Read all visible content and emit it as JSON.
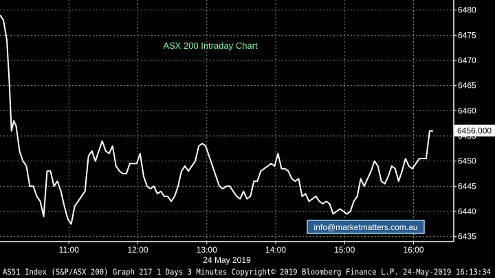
{
  "chart_data": {
    "type": "line",
    "title": "ASX 200 Intraday Chart",
    "xlabel": "24 May 2019",
    "ylabel": "",
    "ylim": [
      6434,
      6482
    ],
    "xlim": [
      "10:00",
      "16:35"
    ],
    "grid": true,
    "x_ticks": [
      "11:00",
      "12:00",
      "13:00",
      "14:00",
      "15:00",
      "16:00"
    ],
    "y_ticks": [
      6435,
      6440,
      6445,
      6450,
      6455,
      6460,
      6465,
      6470,
      6475,
      6480
    ],
    "last_value_label": "6456.000",
    "series": [
      {
        "values": [
          [
            "10:00",
            6479
          ],
          [
            "10:03",
            6478
          ],
          [
            "10:06",
            6474
          ],
          [
            "10:08",
            6466
          ],
          [
            "10:10",
            6456
          ],
          [
            "10:12",
            6458
          ],
          [
            "10:14",
            6457
          ],
          [
            "10:17",
            6452
          ],
          [
            "10:20",
            6450
          ],
          [
            "10:23",
            6449
          ],
          [
            "10:26",
            6445
          ],
          [
            "10:29",
            6445
          ],
          [
            "10:32",
            6443
          ],
          [
            "10:35",
            6442
          ],
          [
            "10:38",
            6439
          ],
          [
            "10:41",
            6448
          ],
          [
            "10:44",
            6448
          ],
          [
            "10:47",
            6445
          ],
          [
            "10:50",
            6446
          ],
          [
            "10:53",
            6444
          ],
          [
            "10:56",
            6441
          ],
          [
            "10:59",
            6438.5
          ],
          [
            "11:02",
            6437.5
          ],
          [
            "11:05",
            6441
          ],
          [
            "11:08",
            6442
          ],
          [
            "11:11",
            6443
          ],
          [
            "11:14",
            6444
          ],
          [
            "11:17",
            6451
          ],
          [
            "11:20",
            6452
          ],
          [
            "11:23",
            6450
          ],
          [
            "11:26",
            6452
          ],
          [
            "11:29",
            6454
          ],
          [
            "11:32",
            6452
          ],
          [
            "11:35",
            6451.5
          ],
          [
            "11:38",
            6453
          ],
          [
            "11:41",
            6449
          ],
          [
            "11:44",
            6448
          ],
          [
            "11:47",
            6447.5
          ],
          [
            "11:50",
            6447.5
          ],
          [
            "11:53",
            6449.5
          ],
          [
            "11:56",
            6449.5
          ],
          [
            "11:59",
            6449.5
          ],
          [
            "12:02",
            6451.5
          ],
          [
            "12:05",
            6447
          ],
          [
            "12:08",
            6445
          ],
          [
            "12:11",
            6444.5
          ],
          [
            "12:14",
            6445
          ],
          [
            "12:17",
            6443.5
          ],
          [
            "12:20",
            6444
          ],
          [
            "12:23",
            6443
          ],
          [
            "12:26",
            6443
          ],
          [
            "12:29",
            6442
          ],
          [
            "12:32",
            6443
          ],
          [
            "12:35",
            6445
          ],
          [
            "12:38",
            6448
          ],
          [
            "12:41",
            6449
          ],
          [
            "12:44",
            6448
          ],
          [
            "12:47",
            6449
          ],
          [
            "12:50",
            6450
          ],
          [
            "12:53",
            6453
          ],
          [
            "12:56",
            6453.5
          ],
          [
            "12:59",
            6453
          ],
          [
            "13:02",
            6451
          ],
          [
            "13:05",
            6449
          ],
          [
            "13:08",
            6447
          ],
          [
            "13:11",
            6445
          ],
          [
            "13:14",
            6444.5
          ],
          [
            "13:17",
            6445
          ],
          [
            "13:20",
            6445
          ],
          [
            "13:23",
            6444
          ],
          [
            "13:26",
            6443
          ],
          [
            "13:29",
            6442.5
          ],
          [
            "13:32",
            6444
          ],
          [
            "13:35",
            6442.5
          ],
          [
            "13:38",
            6443
          ],
          [
            "13:41",
            6446
          ],
          [
            "13:44",
            6446
          ],
          [
            "13:47",
            6448
          ],
          [
            "13:50",
            6448.5
          ],
          [
            "13:53",
            6449
          ],
          [
            "13:56",
            6449.5
          ],
          [
            "13:59",
            6449
          ],
          [
            "14:02",
            6451.5
          ],
          [
            "14:05",
            6448.5
          ],
          [
            "14:08",
            6448.5
          ],
          [
            "14:11",
            6448
          ],
          [
            "14:14",
            6446.5
          ],
          [
            "14:17",
            6446
          ],
          [
            "14:20",
            6446.5
          ],
          [
            "14:23",
            6443
          ],
          [
            "14:26",
            6443.5
          ],
          [
            "14:29",
            6442
          ],
          [
            "14:32",
            6442.5
          ],
          [
            "14:35",
            6443
          ],
          [
            "14:38",
            6442
          ],
          [
            "14:41",
            6441.5
          ],
          [
            "14:44",
            6442
          ],
          [
            "14:47",
            6441.5
          ],
          [
            "14:50",
            6439.5
          ],
          [
            "14:53",
            6440
          ],
          [
            "14:56",
            6440.5
          ],
          [
            "14:59",
            6440
          ],
          [
            "15:02",
            6439.5
          ],
          [
            "15:05",
            6440
          ],
          [
            "15:08",
            6442
          ],
          [
            "15:11",
            6443
          ],
          [
            "15:14",
            6446.5
          ],
          [
            "15:17",
            6445
          ],
          [
            "15:20",
            6446.5
          ],
          [
            "15:23",
            6448
          ],
          [
            "15:26",
            6450
          ],
          [
            "15:29",
            6449
          ],
          [
            "15:32",
            6446
          ],
          [
            "15:35",
            6445.5
          ],
          [
            "15:38",
            6447
          ],
          [
            "15:41",
            6449
          ],
          [
            "15:44",
            6448.5
          ],
          [
            "15:47",
            6446
          ],
          [
            "15:50",
            6448
          ],
          [
            "15:53",
            6450.5
          ],
          [
            "15:56",
            6449
          ],
          [
            "15:59",
            6448.5
          ],
          [
            "16:02",
            6449.5
          ],
          [
            "16:05",
            6450.5
          ],
          [
            "16:08",
            6450.5
          ],
          [
            "16:11",
            6450.5
          ],
          [
            "16:14",
            6456
          ],
          [
            "16:17",
            6456
          ]
        ]
      }
    ]
  },
  "overlay": {
    "credit": "info@marketmatters.com.au"
  },
  "footer": {
    "text": "AS51 Index (S&P/ASX 200) Graph 217 1 Days 3 Minutes Copyright© 2019 Bloomberg Finance L.P. 24-May-2019 16:13:34"
  },
  "colors": {
    "background": "#000000",
    "grid": "#8a8a8a",
    "line": "#ffffff",
    "title": "#7CFC9A",
    "credit_border": "#9edcf2",
    "credit_fill": "#2c5b8f",
    "last_label_bg": "#ffffff"
  }
}
